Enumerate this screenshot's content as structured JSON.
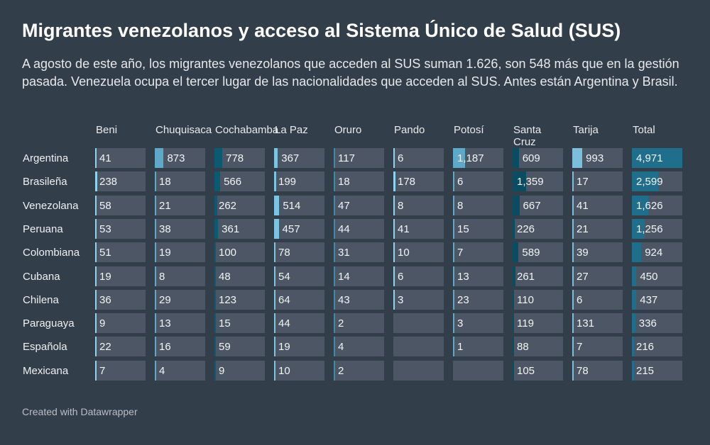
{
  "title": "Migrantes venezolanos y acceso al Sistema Único de Salud (SUS)",
  "subtitle": "A agosto de este año, los migrantes venezolanos que acceden al SUS suman 1.626, son 548 más que en la gestión pasada. Venezuela ocupa el tercer lugar de las nacionalidades que acceden al SUS. Antes están Argentina y Brasil.",
  "footer": "Created with Datawrapper",
  "chart_data": {
    "type": "table",
    "columns": [
      "Beni",
      "Chuquisaca",
      "Cochabamba",
      "La Paz",
      "Oruro",
      "Pando",
      "Potosí",
      "Santa Cruz",
      "Tarija",
      "Total"
    ],
    "column_colors": [
      "#8fd3ee",
      "#5ea9c9",
      "#0b5a72",
      "#7cc4e2",
      "#3f8aa8",
      "#8fd3ee",
      "#5ea9c9",
      "#0a4c62",
      "#7cbfdc",
      "#1f6f8c"
    ],
    "bar_max": 4971,
    "rows": [
      {
        "label": "Argentina",
        "values": [
          41,
          873,
          778,
          367,
          117,
          6,
          1187,
          609,
          993,
          4971
        ]
      },
      {
        "label": "Brasileña",
        "values": [
          238,
          18,
          566,
          199,
          18,
          178,
          6,
          1359,
          17,
          2599
        ]
      },
      {
        "label": "Venezolana",
        "values": [
          58,
          21,
          262,
          514,
          47,
          8,
          8,
          667,
          41,
          1626
        ]
      },
      {
        "label": "Peruana",
        "values": [
          53,
          38,
          361,
          457,
          44,
          41,
          15,
          226,
          21,
          1256
        ]
      },
      {
        "label": "Colombiana",
        "values": [
          51,
          19,
          100,
          78,
          31,
          10,
          7,
          589,
          39,
          924
        ]
      },
      {
        "label": "Cubana",
        "values": [
          19,
          8,
          48,
          54,
          14,
          6,
          13,
          261,
          27,
          450
        ]
      },
      {
        "label": "Chilena",
        "values": [
          36,
          29,
          123,
          64,
          43,
          3,
          23,
          110,
          6,
          437
        ]
      },
      {
        "label": "Paraguaya",
        "values": [
          9,
          13,
          15,
          44,
          2,
          null,
          3,
          119,
          131,
          336
        ]
      },
      {
        "label": "Española",
        "values": [
          22,
          16,
          59,
          19,
          4,
          null,
          1,
          88,
          7,
          216
        ]
      },
      {
        "label": "Mexicana",
        "values": [
          7,
          4,
          9,
          10,
          2,
          null,
          null,
          105,
          78,
          215
        ]
      }
    ]
  }
}
